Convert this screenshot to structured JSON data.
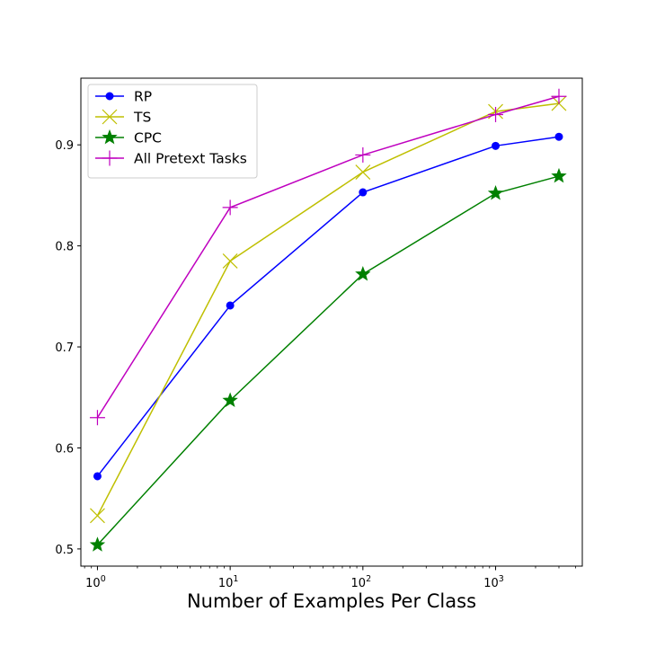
{
  "chart_data": {
    "type": "line",
    "title": "",
    "xlabel": "Number of Examples Per Class",
    "ylabel": "",
    "xscale": "log",
    "xlim": [
      0.75,
      4500
    ],
    "ylim": [
      0.483,
      0.966
    ],
    "x_ticks": [
      {
        "value": 1,
        "base": "10",
        "exp": "0"
      },
      {
        "value": 10,
        "base": "10",
        "exp": "1"
      },
      {
        "value": 100,
        "base": "10",
        "exp": "2"
      },
      {
        "value": 1000,
        "base": "10",
        "exp": "3"
      }
    ],
    "y_ticks": [
      "0.5",
      "0.6",
      "0.7",
      "0.8",
      "0.9"
    ],
    "legend_position": "top-left",
    "grid": false,
    "series": [
      {
        "name": "RP",
        "color": "#0000ff",
        "marker": "circle",
        "x": [
          1,
          10,
          100,
          1000,
          3000
        ],
        "y": [
          0.572,
          0.741,
          0.853,
          0.899,
          0.908
        ]
      },
      {
        "name": "TS",
        "color": "#bfbf00",
        "marker": "x",
        "x": [
          1,
          10,
          100,
          1000,
          3000
        ],
        "y": [
          0.533,
          0.785,
          0.873,
          0.933,
          0.941
        ]
      },
      {
        "name": "CPC",
        "color": "#008000",
        "marker": "star",
        "x": [
          1,
          10,
          100,
          1000,
          3000
        ],
        "y": [
          0.504,
          0.647,
          0.772,
          0.852,
          0.869
        ]
      },
      {
        "name": "All Pretext Tasks",
        "color": "#bf00bf",
        "marker": "plus",
        "x": [
          1,
          10,
          100,
          1000,
          3000
        ],
        "y": [
          0.63,
          0.838,
          0.89,
          0.93,
          0.948
        ]
      }
    ]
  }
}
